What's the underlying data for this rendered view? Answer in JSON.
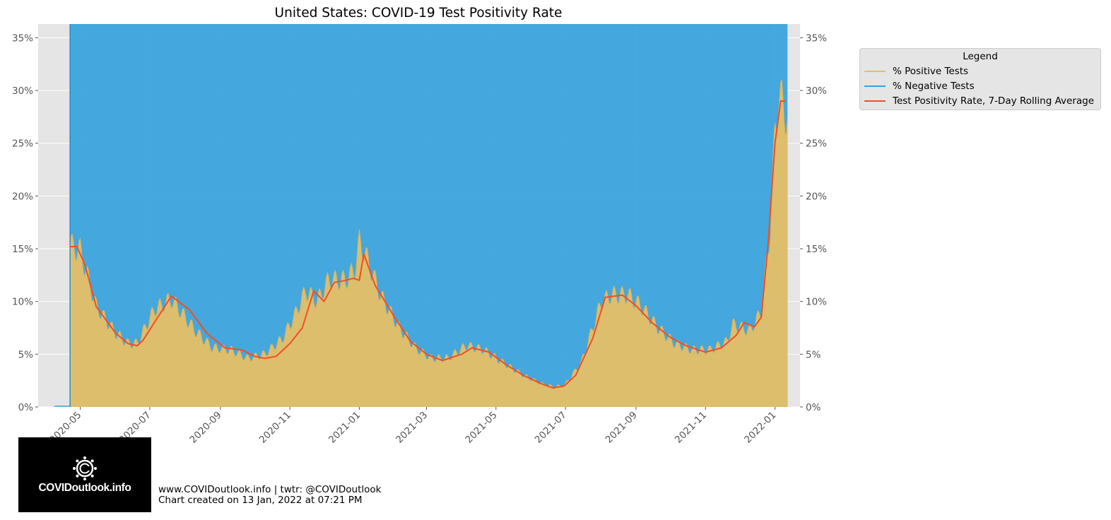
{
  "chart_data": {
    "type": "area",
    "title": "United States: COVID-19 Test Positivity Rate",
    "xlabel": "",
    "ylabel": "",
    "x_tick_labels": [
      "2020-05",
      "2020-07",
      "2020-09",
      "2020-11",
      "2021-01",
      "2021-03",
      "2021-05",
      "2021-07",
      "2021-09",
      "2021-11",
      "2022-01"
    ],
    "y_tick_labels": [
      "0%",
      "5%",
      "10%",
      "15%",
      "20%",
      "25%",
      "30%",
      "35%"
    ],
    "y_ticks": [
      0,
      5,
      10,
      15,
      20,
      25,
      30,
      35
    ],
    "ylim": [
      0,
      36.3
    ],
    "xlim": [
      "2020-03-25",
      "2022-01-23"
    ],
    "grid": true,
    "legend": {
      "title": "Legend",
      "placement": "outside-top-right",
      "entries": [
        {
          "label": "% Positive Tests",
          "color": "#e6bf66"
        },
        {
          "label": "% Negative Tests",
          "color": "#36a2dc"
        },
        {
          "label": "Test Positivity Rate, 7-Day Rolling Average",
          "color": "#f04f25"
        }
      ]
    },
    "series": [
      {
        "name": "% Positive Tests",
        "color": "#e6bf66",
        "x": [
          "2020-04-08",
          "2020-04-21",
          "2020-04-22",
          "2020-05-01",
          "2020-05-15",
          "2020-06-01",
          "2020-06-12",
          "2020-06-20",
          "2020-07-05",
          "2020-07-20",
          "2020-08-10",
          "2020-08-25",
          "2020-09-10",
          "2020-09-25",
          "2020-10-10",
          "2020-10-25",
          "2020-11-05",
          "2020-11-15",
          "2020-11-25",
          "2020-12-05",
          "2020-12-20",
          "2020-12-28",
          "2021-01-01",
          "2021-01-06",
          "2021-01-20",
          "2021-02-05",
          "2021-02-20",
          "2021-03-05",
          "2021-03-20",
          "2021-04-05",
          "2021-04-20",
          "2021-05-10",
          "2021-05-25",
          "2021-06-10",
          "2021-06-20",
          "2021-06-30",
          "2021-07-15",
          "2021-08-01",
          "2021-08-10",
          "2021-08-25",
          "2021-09-05",
          "2021-09-20",
          "2021-10-05",
          "2021-10-20",
          "2021-11-05",
          "2021-11-20",
          "2021-11-25",
          "2021-12-10",
          "2021-12-20",
          "2021-12-28",
          "2022-01-01",
          "2022-01-04",
          "2022-01-08",
          "2022-01-12"
        ],
        "values": [
          0,
          0,
          15.3,
          14.8,
          9.5,
          7.0,
          6.0,
          6.0,
          9.2,
          10.2,
          7.2,
          5.6,
          5.4,
          4.6,
          5.0,
          6.4,
          8.6,
          11.0,
          10.0,
          12.0,
          12.0,
          13.0,
          15.6,
          14.5,
          10.5,
          7.5,
          5.5,
          4.6,
          4.6,
          5.8,
          5.4,
          4.0,
          3.0,
          2.2,
          1.9,
          2.0,
          4.2,
          9.8,
          10.6,
          10.6,
          9.6,
          7.5,
          6.0,
          5.4,
          5.4,
          6.2,
          7.8,
          7.2,
          9.0,
          17.0,
          26.0,
          29.5,
          28.5,
          27.5
        ]
      },
      {
        "name": "% Negative Tests",
        "color": "#36a2dc",
        "note": "complement of % Positive Tests (sums to 100%)"
      },
      {
        "name": "Test Positivity Rate, 7-Day Rolling Average",
        "color": "#f04f25",
        "x": [
          "2020-04-22",
          "2020-04-28",
          "2020-05-05",
          "2020-05-15",
          "2020-06-01",
          "2020-06-12",
          "2020-06-20",
          "2020-06-25",
          "2020-07-05",
          "2020-07-20",
          "2020-08-05",
          "2020-08-20",
          "2020-09-05",
          "2020-09-20",
          "2020-10-01",
          "2020-10-10",
          "2020-10-20",
          "2020-11-01",
          "2020-11-12",
          "2020-11-22",
          "2020-12-01",
          "2020-12-10",
          "2020-12-20",
          "2020-12-27",
          "2021-01-01",
          "2021-01-05",
          "2021-01-15",
          "2021-02-01",
          "2021-02-15",
          "2021-03-01",
          "2021-03-15",
          "2021-04-01",
          "2021-04-10",
          "2021-04-25",
          "2021-05-10",
          "2021-05-25",
          "2021-06-10",
          "2021-06-20",
          "2021-06-30",
          "2021-07-10",
          "2021-07-25",
          "2021-08-05",
          "2021-08-20",
          "2021-09-01",
          "2021-09-15",
          "2021-10-01",
          "2021-10-15",
          "2021-11-01",
          "2021-11-15",
          "2021-11-28",
          "2021-12-05",
          "2021-12-14",
          "2021-12-20",
          "2021-12-26",
          "2022-01-01",
          "2022-01-06",
          "2022-01-10"
        ],
        "values": [
          15.2,
          15.2,
          13.5,
          9.5,
          7.0,
          6.0,
          5.8,
          6.3,
          8.0,
          10.5,
          9.2,
          7.0,
          5.6,
          5.4,
          4.8,
          4.6,
          4.8,
          6.0,
          7.5,
          11.0,
          10.0,
          11.8,
          12.0,
          12.2,
          12.0,
          14.5,
          11.5,
          8.5,
          6.2,
          5.0,
          4.4,
          5.0,
          5.6,
          5.2,
          4.0,
          3.0,
          2.2,
          1.8,
          2.0,
          3.0,
          6.5,
          10.4,
          10.6,
          9.6,
          8.0,
          6.6,
          5.8,
          5.2,
          5.6,
          6.8,
          8.0,
          7.6,
          8.5,
          15.5,
          25.0,
          29.0,
          29.0
        ]
      }
    ]
  },
  "footer": {
    "line1": "www.COVIDoutlook.info | twtr: @COVIDoutlook",
    "line2": "Chart created on 13 Jan, 2022 at 07:21 PM"
  },
  "logo": {
    "text": "COVIDoutlook.info",
    "icon": "virus-c-icon"
  }
}
